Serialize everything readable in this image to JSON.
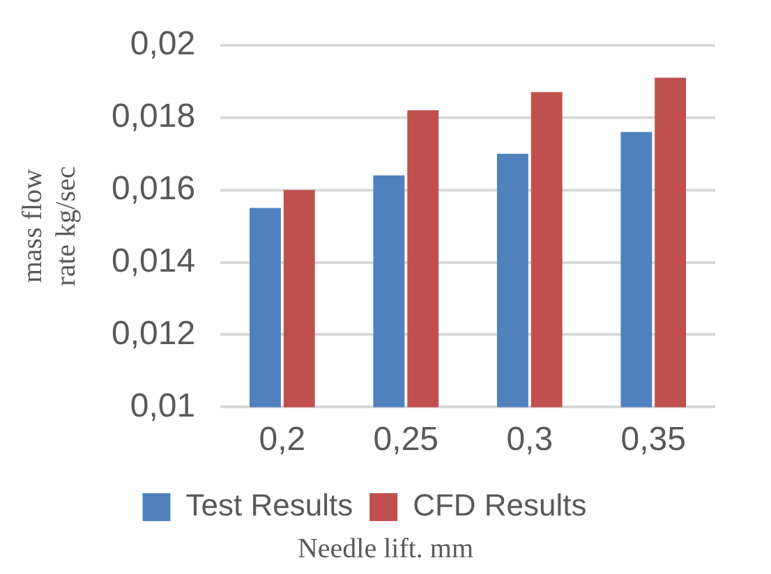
{
  "chart_data": {
    "type": "bar",
    "categories": [
      "0,2",
      "0,25",
      "0,3",
      "0,35"
    ],
    "series": [
      {
        "name": "Test Results",
        "color": "#4f81bd",
        "values": [
          0.0155,
          0.0164,
          0.017,
          0.0176
        ]
      },
      {
        "name": "CFD Results",
        "color": "#c0504d",
        "values": [
          0.016,
          0.0182,
          0.0187,
          0.0191
        ]
      }
    ],
    "ylabel": "mass flow rate kg/sec",
    "xlabel": "Needle lift. mm",
    "ylim": [
      0.01,
      0.02
    ],
    "yticks": [
      {
        "value": 0.01,
        "label": "0,01"
      },
      {
        "value": 0.012,
        "label": "0,012"
      },
      {
        "value": 0.014,
        "label": "0,014"
      },
      {
        "value": 0.016,
        "label": "0,016"
      },
      {
        "value": 0.018,
        "label": "0,018"
      },
      {
        "value": 0.02,
        "label": "0,02"
      }
    ],
    "grid": "y",
    "legend": "bottom"
  }
}
